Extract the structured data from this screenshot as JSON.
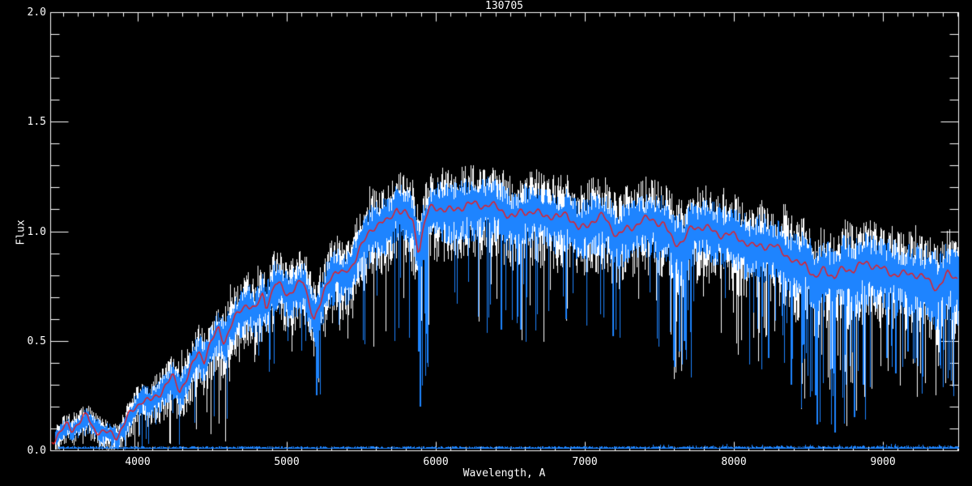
{
  "figure": {
    "background_color": "#000000",
    "axis_color": "#ffffff",
    "text_color": "#ffffff"
  },
  "chart_data": {
    "type": "line",
    "title": "130705",
    "xlabel": "Wavelength, A",
    "ylabel": "Flux",
    "xlim": [
      3413,
      9505
    ],
    "ylim": [
      0.0,
      2.0
    ],
    "grid": false,
    "legend": false,
    "x_major_ticks": [
      4000,
      5000,
      6000,
      7000,
      8000,
      9000
    ],
    "x_tick_labels": [
      "4000",
      "5000",
      "6000",
      "7000",
      "8000",
      "9000"
    ],
    "x_minor_tick_interval": 100,
    "y_major_ticks": [
      0.0,
      0.5,
      1.0,
      1.5,
      2.0
    ],
    "y_tick_labels": [
      "0.0",
      "0.5",
      "1.0",
      "1.5",
      "2.0"
    ],
    "y_minor_tick_interval": 0.1,
    "data_wavelength_range": [
      3445,
      9505
    ],
    "series": [
      {
        "name": "raw spectrum",
        "style": "noisy-vertical-fill",
        "color": "#ffffff"
      },
      {
        "name": "observed spectrum",
        "style": "noisy-vertical-fill",
        "color": "#1e84ff"
      },
      {
        "name": "smoothed spectrum",
        "style": "line",
        "color": "#ef1a1a"
      },
      {
        "name": "error spectrum",
        "style": "line",
        "color": "#1e84ff",
        "flux_level": 0.015
      }
    ],
    "continuum_anchors": [
      [
        3445,
        0.06
      ],
      [
        3485,
        0.09
      ],
      [
        3530,
        0.115
      ],
      [
        3560,
        0.09
      ],
      [
        3610,
        0.125
      ],
      [
        3663,
        0.155
      ],
      [
        3700,
        0.11
      ],
      [
        3730,
        0.1
      ],
      [
        3770,
        0.085
      ],
      [
        3810,
        0.078
      ],
      [
        3864,
        0.06
      ],
      [
        3918,
        0.125
      ],
      [
        3973,
        0.19
      ],
      [
        4027,
        0.24
      ],
      [
        4081,
        0.225
      ],
      [
        4136,
        0.25
      ],
      [
        4190,
        0.29
      ],
      [
        4233,
        0.33
      ],
      [
        4282,
        0.28
      ],
      [
        4353,
        0.37
      ],
      [
        4407,
        0.45
      ],
      [
        4445,
        0.41
      ],
      [
        4489,
        0.48
      ],
      [
        4543,
        0.55
      ],
      [
        4581,
        0.5
      ],
      [
        4625,
        0.58
      ],
      [
        4679,
        0.63
      ],
      [
        4733,
        0.67
      ],
      [
        4787,
        0.63
      ],
      [
        4841,
        0.71
      ],
      [
        4861,
        0.66
      ],
      [
        4922,
        0.77
      ],
      [
        4960,
        0.75
      ],
      [
        5005,
        0.71
      ],
      [
        5060,
        0.74
      ],
      [
        5110,
        0.76
      ],
      [
        5150,
        0.68
      ],
      [
        5185,
        0.61
      ],
      [
        5230,
        0.68
      ],
      [
        5280,
        0.78
      ],
      [
        5330,
        0.82
      ],
      [
        5380,
        0.79
      ],
      [
        5430,
        0.83
      ],
      [
        5480,
        0.92
      ],
      [
        5530,
        0.97
      ],
      [
        5580,
        1.02
      ],
      [
        5630,
        1.04
      ],
      [
        5680,
        1.03
      ],
      [
        5739,
        1.11
      ],
      [
        5793,
        1.09
      ],
      [
        5845,
        1.05
      ],
      [
        5885,
        0.91
      ],
      [
        5930,
        1.05
      ],
      [
        5956,
        1.09
      ],
      [
        6038,
        1.11
      ],
      [
        6119,
        1.1
      ],
      [
        6201,
        1.12
      ],
      [
        6282,
        1.11
      ],
      [
        6364,
        1.13
      ],
      [
        6445,
        1.1
      ],
      [
        6527,
        1.05
      ],
      [
        6581,
        1.09
      ],
      [
        6663,
        1.09
      ],
      [
        6744,
        1.08
      ],
      [
        6826,
        1.05
      ],
      [
        6880,
        1.08
      ],
      [
        6961,
        1.01
      ],
      [
        7043,
        1.05
      ],
      [
        7124,
        1.06
      ],
      [
        7217,
        0.98
      ],
      [
        7287,
        1.02
      ],
      [
        7368,
        1.04
      ],
      [
        7450,
        1.05
      ],
      [
        7531,
        1.03
      ],
      [
        7600,
        0.96
      ],
      [
        7656,
        0.95
      ],
      [
        7721,
        1.01
      ],
      [
        7803,
        1.02
      ],
      [
        7884,
        1.0
      ],
      [
        7966,
        0.98
      ],
      [
        8047,
        0.96
      ],
      [
        8117,
        0.93
      ],
      [
        8182,
        0.95
      ],
      [
        8237,
        0.93
      ],
      [
        8319,
        0.91
      ],
      [
        8411,
        0.85
      ],
      [
        8482,
        0.87
      ],
      [
        8547,
        0.77
      ],
      [
        8607,
        0.83
      ],
      [
        8672,
        0.78
      ],
      [
        8737,
        0.84
      ],
      [
        8807,
        0.83
      ],
      [
        8889,
        0.85
      ],
      [
        8970,
        0.83
      ],
      [
        9051,
        0.82
      ],
      [
        9133,
        0.8
      ],
      [
        9214,
        0.8
      ],
      [
        9295,
        0.78
      ],
      [
        9366,
        0.75
      ],
      [
        9431,
        0.8
      ],
      [
        9502,
        0.78
      ]
    ],
    "noise_profile": [
      [
        3445,
        0.045,
        0.032
      ],
      [
        3900,
        0.055,
        0.038
      ],
      [
        4300,
        0.1,
        0.068
      ],
      [
        4800,
        0.12,
        0.082
      ],
      [
        5300,
        0.13,
        0.09
      ],
      [
        5800,
        0.145,
        0.1
      ],
      [
        6300,
        0.145,
        0.1
      ],
      [
        6800,
        0.15,
        0.1
      ],
      [
        7300,
        0.15,
        0.105
      ],
      [
        7800,
        0.15,
        0.105
      ],
      [
        8300,
        0.16,
        0.11
      ],
      [
        8800,
        0.17,
        0.12
      ],
      [
        9200,
        0.16,
        0.12
      ],
      [
        9502,
        0.17,
        0.13
      ]
    ],
    "high_noise_windows": [
      [
        3445,
        3980,
        0.1,
        1.0
      ],
      [
        4000,
        4600,
        0.11,
        0.95
      ],
      [
        5150,
        5260,
        0.14,
        0.65
      ],
      [
        5850,
        5950,
        0.13,
        0.72
      ],
      [
        6540,
        6610,
        0.12,
        0.55
      ],
      [
        6850,
        6960,
        0.12,
        0.5
      ],
      [
        7580,
        7720,
        0.26,
        0.68
      ],
      [
        8100,
        8400,
        0.18,
        0.62
      ],
      [
        8450,
        8950,
        0.3,
        0.88
      ],
      [
        9000,
        9505,
        0.24,
        0.7
      ]
    ],
    "deep_absorptions": [
      [
        5195,
        0.25
      ],
      [
        5208,
        0.33
      ],
      [
        5880,
        0.45
      ],
      [
        5893,
        0.2
      ],
      [
        6435,
        0.55
      ],
      [
        6565,
        0.55
      ],
      [
        6870,
        0.6
      ],
      [
        7185,
        0.52
      ],
      [
        7600,
        0.38
      ],
      [
        7632,
        0.45
      ],
      [
        7665,
        0.5
      ],
      [
        8228,
        0.42
      ],
      [
        8380,
        0.3
      ],
      [
        8450,
        0.4
      ],
      [
        8542,
        0.25
      ],
      [
        8552,
        0.12
      ],
      [
        8672,
        0.08
      ],
      [
        8802,
        0.15
      ],
      [
        8865,
        0.3
      ],
      [
        9020,
        0.42
      ],
      [
        9080,
        0.35
      ],
      [
        9160,
        0.45
      ],
      [
        9350,
        0.55
      ],
      [
        9410,
        0.6
      ]
    ]
  }
}
